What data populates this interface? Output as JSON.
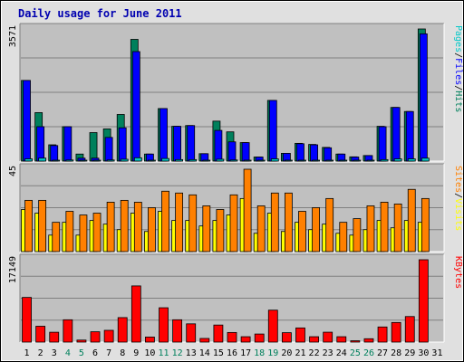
{
  "chart_data": [
    {
      "type": "bar",
      "title": "Daily usage for June 2011",
      "panel": "hits-files-pages",
      "ymax_label": "3571",
      "legend": [
        "Pages",
        "/",
        "Files",
        "/",
        "Hits"
      ],
      "categories": [
        "1",
        "2",
        "3",
        "4",
        "5",
        "6",
        "7",
        "8",
        "9",
        "10",
        "11",
        "12",
        "13",
        "14",
        "15",
        "16",
        "17",
        "18",
        "19",
        "20",
        "21",
        "22",
        "23",
        "24",
        "25",
        "26",
        "27",
        "28",
        "29",
        "30",
        "31"
      ],
      "weekend_days": [
        "4",
        "5",
        "11",
        "12",
        "18",
        "19",
        "25",
        "26"
      ],
      "ylim": [
        0,
        3571
      ],
      "series": [
        {
          "name": "Hits",
          "color": "#00805c",
          "values": [
            2180,
            1310,
            440,
            930,
            190,
            770,
            870,
            1260,
            3290,
            190,
            1420,
            940,
            960,
            200,
            1080,
            790,
            500,
            110,
            1640,
            210,
            480,
            450,
            370,
            190,
            115,
            150,
            940,
            1450,
            1340,
            3571,
            0
          ]
        },
        {
          "name": "Files",
          "color": "#0000ff",
          "values": [
            2180,
            930,
            420,
            930,
            80,
            80,
            640,
            900,
            2960,
            190,
            1420,
            940,
            960,
            200,
            830,
            520,
            500,
            110,
            1640,
            210,
            470,
            440,
            360,
            190,
            110,
            150,
            930,
            1450,
            1340,
            3440,
            0
          ]
        },
        {
          "name": "Pages",
          "color": "#00c8c8",
          "values": [
            60,
            80,
            20,
            30,
            10,
            20,
            30,
            50,
            90,
            10,
            70,
            40,
            40,
            10,
            50,
            30,
            20,
            10,
            60,
            10,
            20,
            20,
            20,
            10,
            10,
            10,
            40,
            60,
            60,
            80,
            0
          ]
        }
      ]
    },
    {
      "type": "bar",
      "panel": "visits-sites",
      "ymax_label": "45",
      "legend": [
        "Sites",
        "/",
        "Visits"
      ],
      "ylim": [
        0,
        45
      ],
      "series": [
        {
          "name": "Visits",
          "color": "#ffff00",
          "values": [
            23,
            21,
            9,
            16,
            9,
            17,
            15,
            12,
            21,
            11,
            22,
            17,
            17,
            14,
            17,
            20,
            29,
            10,
            21,
            11,
            16,
            12,
            15,
            10,
            9,
            12,
            17,
            13,
            17,
            16,
            0
          ]
        },
        {
          "name": "Sites",
          "color": "#ff8000",
          "values": [
            28,
            28,
            16,
            22,
            20,
            21,
            27,
            28,
            27,
            24,
            33,
            32,
            31,
            25,
            23,
            31,
            45,
            25,
            32,
            32,
            22,
            24,
            29,
            16,
            18,
            25,
            27,
            26,
            34,
            29,
            0
          ]
        }
      ]
    },
    {
      "type": "bar",
      "panel": "kbytes",
      "ymax_label": "17149",
      "legend": [
        "KBytes"
      ],
      "ylim": [
        0,
        17149
      ],
      "series": [
        {
          "name": "KBytes",
          "color": "#ff0000",
          "values": [
            9300,
            3300,
            2050,
            4650,
            420,
            2150,
            2450,
            5100,
            11700,
            1050,
            7150,
            4650,
            3800,
            760,
            3550,
            2000,
            1120,
            1680,
            6650,
            1960,
            2950,
            1120,
            2060,
            1120,
            280,
            700,
            3150,
            4080,
            5320,
            17149,
            0
          ]
        }
      ]
    }
  ]
}
